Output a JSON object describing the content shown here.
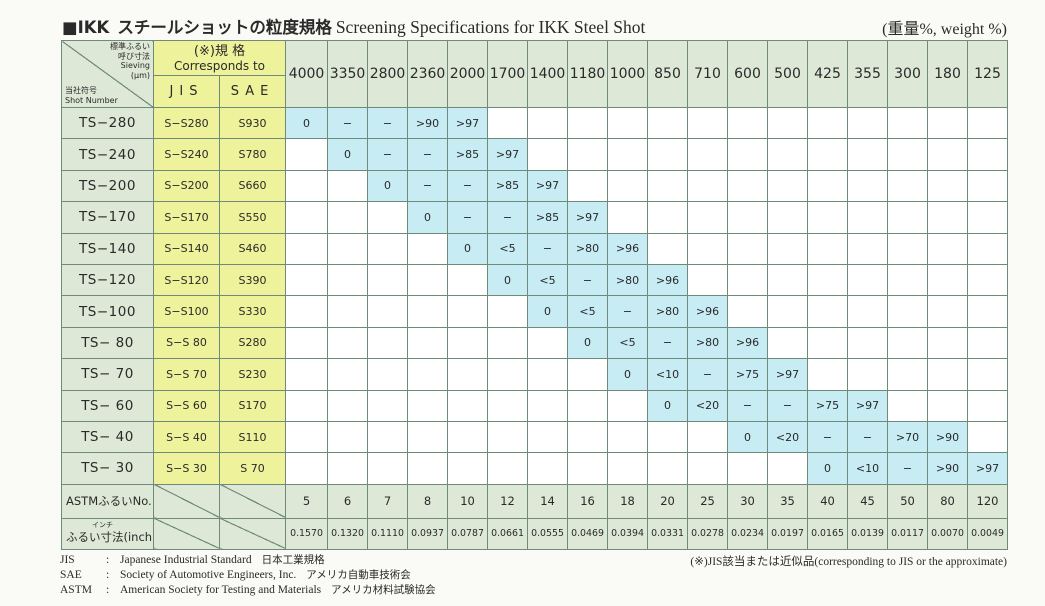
{
  "title": {
    "brand": "■IKK",
    "jp": "スチールショットの粒度規格",
    "en": "Screening Specifications for IKK Steel Shot",
    "unit": "(重量%, weight %)"
  },
  "header": {
    "corner_top": [
      "標準ふるい",
      "呼び寸法",
      "Sieving",
      "(μm)"
    ],
    "corner_bottom": [
      "当社符号",
      "Shot Number"
    ],
    "corr_jp": "(※)規 格",
    "corr_en": "Corresponds to",
    "jis": "JIS",
    "sae": "SAE",
    "sieves": [
      "4000",
      "3350",
      "2800",
      "2360",
      "2000",
      "1700",
      "1400",
      "1180",
      "1000",
      "850",
      "710",
      "600",
      "500",
      "425",
      "355",
      "300",
      "180",
      "125"
    ]
  },
  "rows": [
    {
      "shot": "TS−280",
      "jis": "S−S280",
      "sae": "S930",
      "start": 0,
      "vals": [
        "0",
        "−",
        "−",
        ">90",
        ">97"
      ]
    },
    {
      "shot": "TS−240",
      "jis": "S−S240",
      "sae": "S780",
      "start": 1,
      "vals": [
        "0",
        "−",
        "−",
        ">85",
        ">97"
      ]
    },
    {
      "shot": "TS−200",
      "jis": "S−S200",
      "sae": "S660",
      "start": 2,
      "vals": [
        "0",
        "−",
        "−",
        ">85",
        ">97"
      ]
    },
    {
      "shot": "TS−170",
      "jis": "S−S170",
      "sae": "S550",
      "start": 3,
      "vals": [
        "0",
        "−",
        "−",
        ">85",
        ">97"
      ]
    },
    {
      "shot": "TS−140",
      "jis": "S−S140",
      "sae": "S460",
      "start": 4,
      "vals": [
        "0",
        "<5",
        "−",
        ">80",
        ">96"
      ]
    },
    {
      "shot": "TS−120",
      "jis": "S−S120",
      "sae": "S390",
      "start": 5,
      "vals": [
        "0",
        "<5",
        "−",
        ">80",
        ">96"
      ]
    },
    {
      "shot": "TS−100",
      "jis": "S−S100",
      "sae": "S330",
      "start": 6,
      "vals": [
        "0",
        "<5",
        "−",
        ">80",
        ">96"
      ]
    },
    {
      "shot": "TS− 80",
      "jis": "S−S 80",
      "sae": "S280",
      "start": 7,
      "vals": [
        "0",
        "<5",
        "−",
        ">80",
        ">96"
      ]
    },
    {
      "shot": "TS− 70",
      "jis": "S−S 70",
      "sae": "S230",
      "start": 8,
      "vals": [
        "0",
        "<10",
        "−",
        ">75",
        ">97"
      ]
    },
    {
      "shot": "TS− 60",
      "jis": "S−S 60",
      "sae": "S170",
      "start": 9,
      "vals": [
        "0",
        "<20",
        "−",
        "−",
        ">75",
        ">97"
      ]
    },
    {
      "shot": "TS− 40",
      "jis": "S−S 40",
      "sae": "S110",
      "start": 11,
      "vals": [
        "0",
        "<20",
        "−",
        "−",
        ">70",
        ">90"
      ]
    },
    {
      "shot": "TS− 30",
      "jis": "S−S 30",
      "sae": "S 70",
      "start": 13,
      "vals": [
        "0",
        "<10",
        "−",
        ">90",
        ">97"
      ]
    }
  ],
  "astm": {
    "label": "ASTMふるいNo.",
    "values": [
      "5",
      "6",
      "7",
      "8",
      "10",
      "12",
      "14",
      "16",
      "18",
      "20",
      "25",
      "30",
      "35",
      "40",
      "45",
      "50",
      "80",
      "120"
    ]
  },
  "inch": {
    "ruby": "インチ",
    "label": "ふるい寸法(inch)",
    "values": [
      "0.1570",
      "0.1320",
      "0.1110",
      "0.0937",
      "0.0787",
      "0.0661",
      "0.0555",
      "0.0469",
      "0.0394",
      "0.0331",
      "0.0278",
      "0.0234",
      "0.0197",
      "0.0165",
      "0.0139",
      "0.0117",
      "0.0070",
      "0.0049"
    ]
  },
  "notes": [
    {
      "abbr": "JIS",
      "en": "Japanese Industrial Standard",
      "jp": "日本工業規格"
    },
    {
      "abbr": "SAE",
      "en": "Society of Automotive Engineers, Inc.",
      "jp": "アメリカ自動車技術会"
    },
    {
      "abbr": "ASTM",
      "en": "American Society for Testing and Materials",
      "jp": "アメリカ材料試験協会"
    }
  ],
  "note_right": "(※)JIS該当または近似品(corresponding to JIS or the approximate)",
  "colors": {
    "header_green": "#dde8d6",
    "corr_yellow": "#eef29b",
    "range_blue": "#c7ecf4",
    "border": "#6f8a78"
  }
}
